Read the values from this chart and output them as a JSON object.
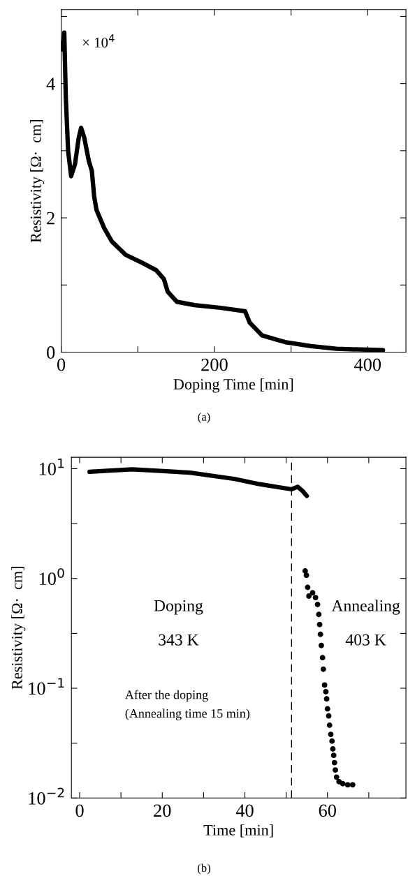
{
  "chart_data": [
    {
      "type": "line",
      "xlabel": "Doping Time [min]",
      "ylabel": "Resistivity [Ω·  cm]",
      "annotations": [
        "× 10$^{4}$",
        "(a)"
      ],
      "series": [
        {
          "color": "#000000",
          "x": [
            2,
            3,
            4,
            6,
            9,
            13,
            18,
            23,
            26,
            30,
            36,
            40,
            43,
            46,
            56,
            66,
            84,
            104,
            124,
            134,
            139,
            151,
            174,
            208,
            240,
            246,
            262,
            292,
            326,
            359,
            420
          ],
          "values": [
            4.6,
            4.5,
            4.76,
            3.8,
            3.0,
            2.62,
            2.8,
            3.2,
            3.34,
            3.2,
            2.85,
            2.7,
            2.32,
            2.12,
            1.85,
            1.65,
            1.45,
            1.34,
            1.22,
            1.09,
            0.9,
            0.75,
            0.7,
            0.66,
            0.61,
            0.44,
            0.25,
            0.15,
            0.09,
            0.05,
            0.03
          ]
        }
      ],
      "xlim": [
        0,
        450
      ],
      "xticks": [
        0,
        {
          "value": 100,
          "label": null
        },
        200,
        {
          "value": 300,
          "label": null
        },
        400
      ],
      "ylim": [
        0,
        5.1
      ],
      "yticks": [
        0,
        {
          "value": 1,
          "label": null
        },
        2,
        {
          "value": 3,
          "label": null
        },
        4,
        {
          "value": 5,
          "label": null
        }
      ],
      "grid": false,
      "legend": false,
      "marker": "none",
      "line_style": "solid"
    },
    {
      "type": "line",
      "xlabel": "Time [min]",
      "ylabel": "Resistivity [Ω·  cm]",
      "log": "y",
      "annotations": [
        "Doping",
        "343 K",
        "Annealing",
        "403 K",
        "After the doping",
        "(Annealing time 15 min)",
        "(b)"
      ],
      "ref_lines": [
        {
          "axis": "x",
          "value": 51.3,
          "label": null,
          "color": "#000000",
          "line_style": "dashed"
        }
      ],
      "series": [
        {
          "color": "#000000",
          "x": [
            2.4,
            12.7,
            26.7,
            37.6,
            43.6,
            51.3,
            52.8,
            54,
            55
          ],
          "values": [
            9.36,
            9.85,
            9.2,
            8.05,
            7.22,
            6.49,
            6.84,
            6.24,
            5.65
          ]
        },
        {
          "type": "scatter",
          "marker": "circle",
          "color": "#000000",
          "x": [
            54.6,
            54.9,
            55.2,
            55.5,
            56.4,
            57.1,
            57.6,
            57.9,
            58.1,
            58.3,
            58.5,
            58.8,
            59.0,
            59.3,
            59.6,
            59.8,
            60.0,
            60.3,
            60.5,
            60.8,
            61.1,
            61.3,
            61.5,
            61.7,
            61.9,
            62.2,
            62.8,
            63.7,
            64.9,
            66.1
          ],
          "values": [
            1.17,
            1.07,
            0.83,
            0.69,
            0.74,
            0.67,
            0.58,
            0.47,
            0.38,
            0.31,
            0.245,
            0.19,
            0.149,
            0.107,
            0.093,
            0.08,
            0.065,
            0.056,
            0.046,
            0.038,
            0.033,
            0.028,
            0.0245,
            0.021,
            0.018,
            0.0155,
            0.0141,
            0.0135,
            0.0132,
            0.0132
          ]
        }
      ],
      "xlim": [
        -2,
        79
      ],
      "xticks": [
        0,
        {
          "value": 10,
          "label": null
        },
        20,
        {
          "value": 30,
          "label": null
        },
        40,
        {
          "value": 50,
          "label": null
        },
        60,
        {
          "value": 70,
          "label": null
        }
      ],
      "ylim": [
        0.01,
        12.7
      ],
      "yticks": [
        {
          "value": 0.01,
          "label": "10$^{−2}$"
        },
        {
          "value": 0.0316,
          "label": null
        },
        {
          "value": 0.1,
          "label": "10$^{−1}$"
        },
        {
          "value": 0.316,
          "label": null
        },
        {
          "value": 1,
          "label": "10$^{0}$"
        },
        {
          "value": 3.16,
          "label": null
        },
        {
          "value": 10,
          "label": "10$^{1}$"
        }
      ],
      "grid": false,
      "legend": false
    }
  ]
}
